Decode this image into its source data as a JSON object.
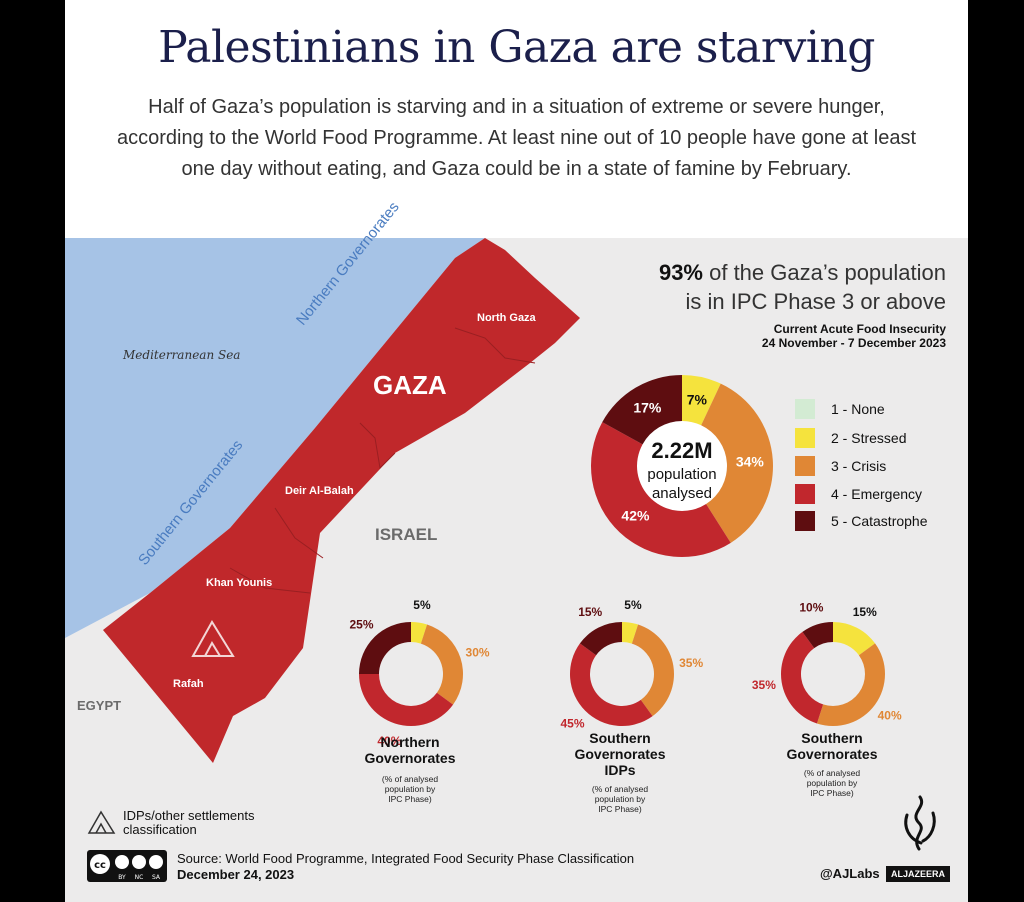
{
  "header": {
    "title": "Palestinians in Gaza are starving",
    "subtitle": "Half of Gaza’s population is starving and in a situation of extreme or severe hunger, according to the World Food Programme. At least nine out of 10 people have gone at least one day without eating, and Gaza could be in a state of famine by February."
  },
  "map": {
    "sea_label": "Mediterranean Sea",
    "gaza_label": "GAZA",
    "israel_label": "ISRAEL",
    "egypt_label": "EGYPT",
    "northern_label": "Northern Governorates",
    "southern_label": "Southern Governorates",
    "places": [
      "North Gaza",
      "Deir Al-Balah",
      "Khan Younis",
      "Rafah"
    ],
    "legend_label": "IDPs/other settlements classification",
    "colors": {
      "sea": "#a6c3e6",
      "land": "#c0282b",
      "ground": "#ecebeb",
      "label_blue": "#4a7cc0"
    }
  },
  "headline": {
    "stat": "93%",
    "text_line1": " of the Gaza’s population",
    "text_line2": "is in IPC Phase 3 or above"
  },
  "period": {
    "line1": "Current Acute Food Insecurity",
    "line2": "24 November - 7 December 2023"
  },
  "center_label": {
    "value": "2.22M",
    "line1": "population",
    "line2": "analysed"
  },
  "legend": [
    {
      "label": "1 - None",
      "color": "#d3ebd3"
    },
    {
      "label": "2 - Stressed",
      "color": "#f5e33d"
    },
    {
      "label": "3 - Crisis",
      "color": "#e08735"
    },
    {
      "label": "4 - Emergency",
      "color": "#c1272d"
    },
    {
      "label": "5 - Catastrophe",
      "color": "#5e0d10"
    }
  ],
  "chart_data": [
    {
      "type": "pie",
      "name": "Gaza",
      "categories": [
        "2 - Stressed",
        "3 - Crisis",
        "4 - Emergency",
        "5 - Catastrophe"
      ],
      "values": [
        7,
        34,
        42,
        17
      ],
      "labels": [
        "7%",
        "34%",
        "42%",
        "17%"
      ]
    },
    {
      "type": "pie",
      "name": "Northern Governorates",
      "categories": [
        "2 - Stressed",
        "3 - Crisis",
        "4 - Emergency",
        "5 - Catastrophe"
      ],
      "values": [
        5,
        30,
        40,
        25
      ],
      "labels": [
        "5%",
        "30%",
        "40%",
        "25%"
      ]
    },
    {
      "type": "pie",
      "name": "Southern Governorates IDPs",
      "categories": [
        "2 - Stressed",
        "3 - Crisis",
        "4 - Emergency",
        "5 - Catastrophe"
      ],
      "values": [
        5,
        35,
        45,
        15
      ],
      "labels": [
        "5%",
        "35%",
        "45%",
        "15%"
      ]
    },
    {
      "type": "pie",
      "name": "Southern Governorates",
      "categories": [
        "2 - Stressed",
        "3 - Crisis",
        "4 - Emergency",
        "5 - Catastrophe"
      ],
      "values": [
        15,
        40,
        35,
        10
      ],
      "labels": [
        "15%",
        "40%",
        "35%",
        "10%"
      ]
    }
  ],
  "small_titles": {
    "north": [
      "Northern",
      "Governorates"
    ],
    "idps": [
      "Southern",
      "Governorates",
      "IDPs"
    ],
    "south": [
      "Southern",
      "Governorates"
    ]
  },
  "small_note": [
    "(% of analysed",
    "population by",
    "IPC Phase)"
  ],
  "footer": {
    "source": "Source:  World Food Programme,  Integrated Food Security Phase Classification",
    "date": "December 24, 2023",
    "credit": "@AJLabs",
    "brand": "ALJAZEERA",
    "cc_labels": [
      "BY",
      "NC",
      "SA"
    ]
  }
}
